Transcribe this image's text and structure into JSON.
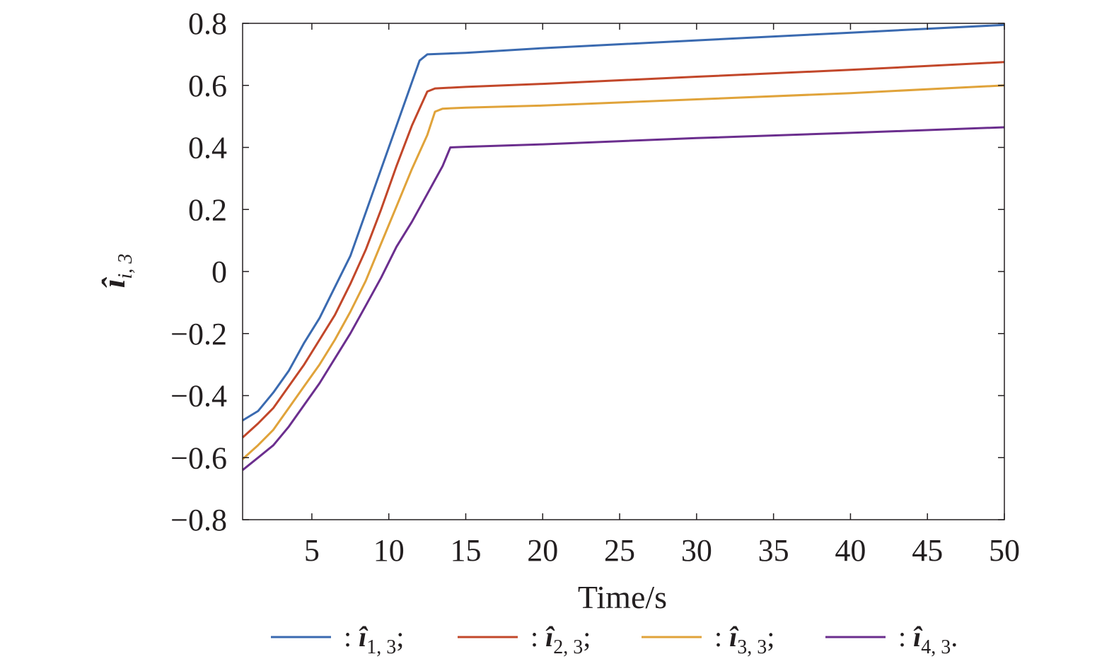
{
  "chart_data": {
    "type": "line",
    "xlabel": "Time/s",
    "ylabel": {
      "symbol": "î",
      "subscript": "i, 3"
    },
    "xlim": [
      0.5,
      50
    ],
    "ylim": [
      -0.8,
      0.8
    ],
    "xticks": [
      5,
      10,
      15,
      20,
      25,
      30,
      35,
      40,
      45,
      50
    ],
    "yticks": [
      -0.8,
      -0.6,
      -0.4,
      -0.2,
      0,
      0.2,
      0.4,
      0.6,
      0.8
    ],
    "ytick_labels": [
      "−0.8",
      "−0.6",
      "−0.4",
      "−0.2",
      "0",
      "0.2",
      "0.4",
      "0.6",
      "0.8"
    ],
    "grid": false,
    "legend_position": "bottom",
    "series": [
      {
        "name": "î1,3",
        "legend": {
          "symbol": "î",
          "subscript": "1, 3",
          "terminator": ";"
        },
        "color": "#3a6ab0",
        "x": [
          0.5,
          1.5,
          2.5,
          3.5,
          4.5,
          5.5,
          6.5,
          7.5,
          8.5,
          9.5,
          10.5,
          11.5,
          12.0,
          12.5,
          15,
          20,
          30,
          40,
          50
        ],
        "y": [
          -0.48,
          -0.45,
          -0.39,
          -0.32,
          -0.23,
          -0.15,
          -0.05,
          0.05,
          0.19,
          0.33,
          0.47,
          0.61,
          0.68,
          0.7,
          0.705,
          0.72,
          0.745,
          0.77,
          0.795
        ]
      },
      {
        "name": "î2,3",
        "legend": {
          "symbol": "î",
          "subscript": "2, 3",
          "terminator": ";"
        },
        "color": "#c2472a",
        "x": [
          0.5,
          1.5,
          2.5,
          3.5,
          4.5,
          5.5,
          6.5,
          7.5,
          8.5,
          9.5,
          10.5,
          11.5,
          12.5,
          13,
          15,
          20,
          30,
          40,
          50
        ],
        "y": [
          -0.535,
          -0.49,
          -0.44,
          -0.37,
          -0.3,
          -0.22,
          -0.14,
          -0.04,
          0.07,
          0.2,
          0.34,
          0.47,
          0.58,
          0.59,
          0.595,
          0.605,
          0.628,
          0.65,
          0.675
        ]
      },
      {
        "name": "î3,3",
        "legend": {
          "symbol": "î",
          "subscript": "3, 3",
          "terminator": ";"
        },
        "color": "#e0a33a",
        "x": [
          0.5,
          1.5,
          2.5,
          3.5,
          4.5,
          5.5,
          6.5,
          7.5,
          8.5,
          9.5,
          10.5,
          11.5,
          12.5,
          13,
          13.5,
          15,
          20,
          30,
          40,
          50
        ],
        "y": [
          -0.605,
          -0.56,
          -0.51,
          -0.44,
          -0.37,
          -0.3,
          -0.22,
          -0.13,
          -0.03,
          0.09,
          0.21,
          0.33,
          0.44,
          0.515,
          0.525,
          0.528,
          0.535,
          0.555,
          0.575,
          0.6
        ]
      },
      {
        "name": "î4,3",
        "legend": {
          "symbol": "î",
          "subscript": "4, 3",
          "terminator": "."
        },
        "color": "#6b2e8e",
        "x": [
          0.5,
          1.5,
          2.5,
          3.5,
          4.5,
          5.5,
          6.5,
          7.5,
          8.5,
          9.5,
          10.5,
          11.5,
          12.5,
          13.5,
          14,
          15,
          20,
          30,
          40,
          50
        ],
        "y": [
          -0.64,
          -0.6,
          -0.56,
          -0.5,
          -0.43,
          -0.36,
          -0.28,
          -0.2,
          -0.11,
          -0.02,
          0.08,
          0.16,
          0.25,
          0.34,
          0.4,
          0.402,
          0.41,
          0.43,
          0.447,
          0.465
        ]
      }
    ]
  }
}
